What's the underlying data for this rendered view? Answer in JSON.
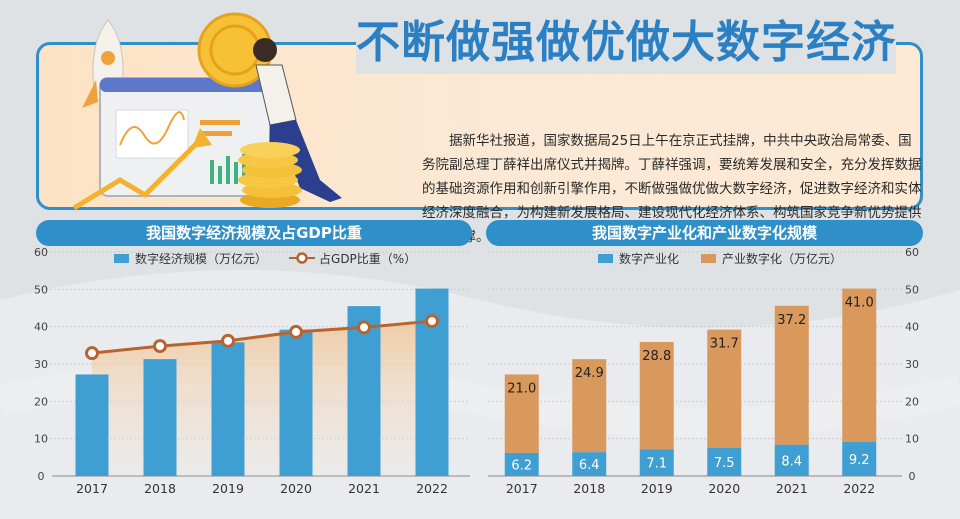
{
  "banner": {
    "title": "不断做强做优做大数字经济",
    "body": "据新华社报道，国家数据局25日上午在京正式挂牌，中共中央政治局常委、国务院副总理丁薛祥出席仪式并揭牌。丁薛祥强调，要统筹发展和安全，充分发挥数据的基础资源作用和创新引擎作用，不断做强做优做大数字经济，促进数字经济和实体经济深度融合，为构建新发展格局、建设现代化经济体系、构筑国家竞争新优势提供有力支撑。"
  },
  "colors": {
    "blue": "#3f9fd2",
    "orange": "#d9985c",
    "line": "#b8642f",
    "header": "#2f8fc9"
  },
  "chart_data": [
    {
      "type": "bar",
      "title": "我国数字经济规模及占GDP比重",
      "categories": [
        "2017",
        "2018",
        "2019",
        "2020",
        "2021",
        "2022"
      ],
      "ylim": [
        0,
        60
      ],
      "yticks": [
        "0",
        "10",
        "20",
        "30",
        "40",
        "50",
        "60"
      ],
      "series": [
        {
          "name": "数字经济规模（万亿元）",
          "type": "bar",
          "values": [
            27.2,
            31.3,
            35.8,
            39.2,
            45.5,
            50.2
          ]
        },
        {
          "name": "占GDP比重（%）",
          "type": "line",
          "values": [
            32.9,
            34.8,
            36.2,
            38.6,
            39.8,
            41.5
          ]
        }
      ]
    },
    {
      "type": "bar",
      "stacked": true,
      "title": "我国数字产业化和产业数字化规模",
      "categories": [
        "2017",
        "2018",
        "2019",
        "2020",
        "2021",
        "2022"
      ],
      "ylim": [
        0,
        60
      ],
      "yticks": [
        "0",
        "10",
        "20",
        "30",
        "40",
        "50",
        "60"
      ],
      "series": [
        {
          "name": "数字产业化",
          "values": [
            6.2,
            6.4,
            7.1,
            7.5,
            8.4,
            9.2
          ],
          "labels": [
            "6.2",
            "6.4",
            "7.1",
            "7.5",
            "8.4",
            "9.2"
          ]
        },
        {
          "name": "产业数字化（万亿元）",
          "values": [
            21.0,
            24.9,
            28.8,
            31.7,
            37.2,
            41.0
          ],
          "labels": [
            "21.0",
            "24.9",
            "28.8",
            "31.7",
            "37.2",
            "41.0"
          ]
        }
      ]
    }
  ]
}
